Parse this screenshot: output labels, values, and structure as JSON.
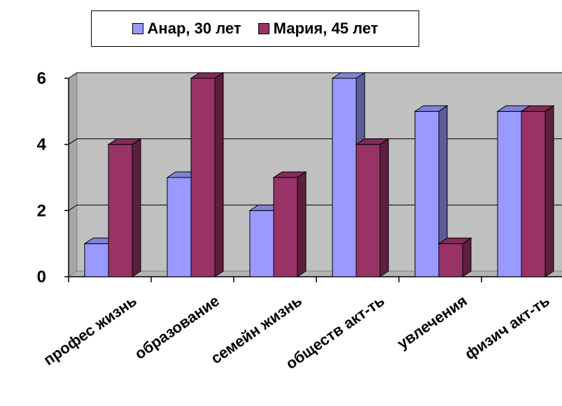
{
  "chart_data": {
    "type": "bar",
    "categories": [
      "профес жизнь",
      "образование",
      "семейн жизнь",
      "обществ акт-ть",
      "увлечения",
      "физич акт-ть"
    ],
    "series": [
      {
        "name": "Анар, 30 лет",
        "values": [
          1,
          3,
          2,
          6,
          5,
          5
        ],
        "color": "#9999ff"
      },
      {
        "name": "Мария, 45 лет",
        "values": [
          4,
          6,
          3,
          4,
          1,
          5
        ],
        "color": "#993366"
      }
    ],
    "yticks": [
      "0",
      "2",
      "4",
      "6"
    ],
    "ylim": [
      0,
      6
    ],
    "grid": true,
    "legend_position": "top",
    "plot_background": "#c0c0c0"
  }
}
